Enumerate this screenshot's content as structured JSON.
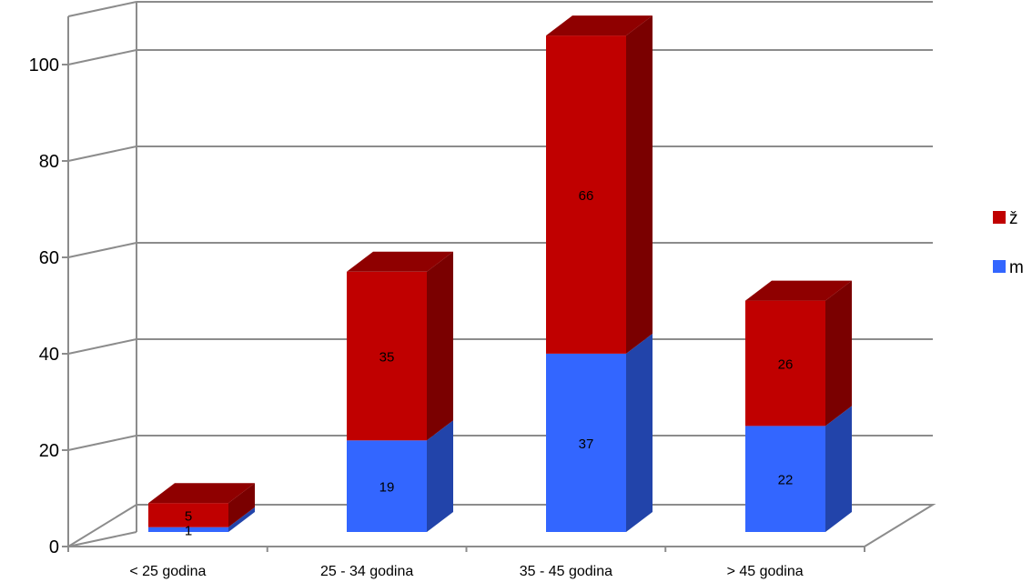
{
  "chart_data": {
    "type": "bar",
    "stacked": true,
    "style": "3d",
    "categories": [
      "< 25 godina",
      "25 - 34 godina",
      "35 - 45 godina",
      "> 45 godina"
    ],
    "series": [
      {
        "name": "m",
        "values": [
          1,
          19,
          37,
          22
        ],
        "color": "#3366FF"
      },
      {
        "name": "ž",
        "values": [
          5,
          35,
          66,
          26
        ],
        "color": "#C00000"
      }
    ],
    "yticks": [
      0,
      20,
      40,
      60,
      80,
      100
    ],
    "ylim": [
      0,
      110
    ],
    "grid": true,
    "legend": "right"
  }
}
